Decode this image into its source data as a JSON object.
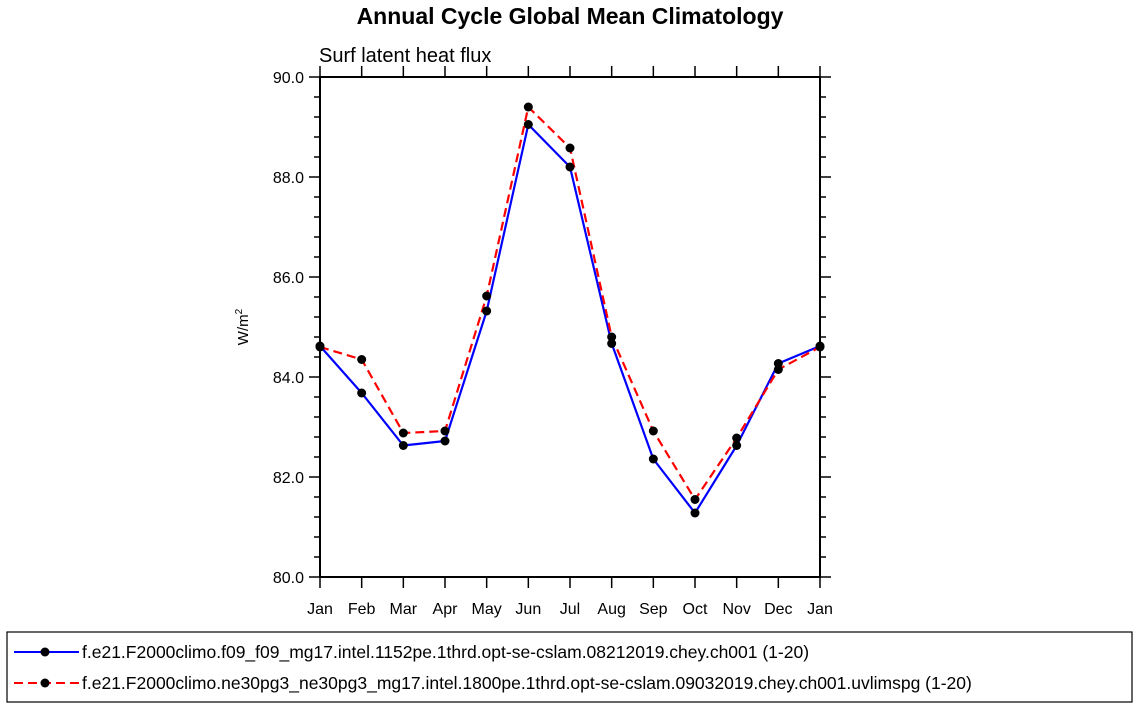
{
  "chart_data": {
    "type": "line",
    "title": "Annual Cycle Global Mean Climatology",
    "subtitle": "Surf latent heat flux",
    "ylabel": "W/m",
    "ylabel_superscript": "2",
    "xlabel": "",
    "categories": [
      "Jan",
      "Feb",
      "Mar",
      "Apr",
      "May",
      "Jun",
      "Jul",
      "Aug",
      "Sep",
      "Oct",
      "Nov",
      "Dec",
      "Jan"
    ],
    "ylim": [
      80.0,
      90.0
    ],
    "yticks": [
      "80.0",
      "82.0",
      "84.0",
      "86.0",
      "88.0",
      "90.0"
    ],
    "series": [
      {
        "name": "f.e21.F2000climo.f09_f09_mg17.intel.1152pe.1thrd.opt-se-cslam.08212019.chey.ch001 (1-20)",
        "color": "#0000ff",
        "dash": "solid",
        "values": [
          84.62,
          83.68,
          82.63,
          82.72,
          85.32,
          89.05,
          88.2,
          84.67,
          82.36,
          81.28,
          82.63,
          84.27,
          84.62
        ]
      },
      {
        "name": "f.e21.F2000climo.ne30pg3_ne30pg3_mg17.intel.1800pe.1thrd.opt-se-cslam.09032019.chey.ch001.uvlimspg (1-20)",
        "color": "#ff0000",
        "dash": "dashed",
        "values": [
          84.6,
          84.35,
          82.88,
          82.92,
          85.62,
          89.4,
          88.58,
          84.8,
          82.92,
          81.55,
          82.78,
          84.15,
          84.6
        ]
      }
    ],
    "legend_position": "bottom",
    "grid": false
  }
}
